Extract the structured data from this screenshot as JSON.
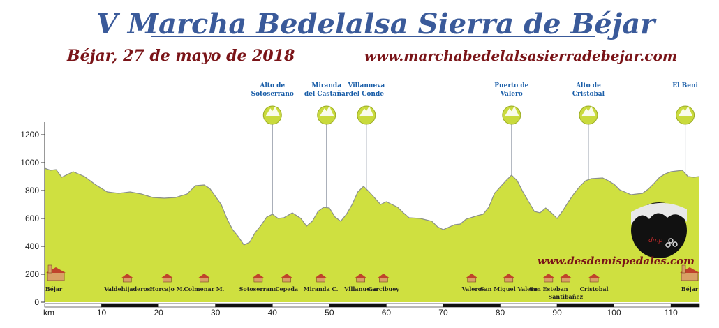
{
  "header": {
    "title": "V Marcha Bedelalsa Sierra de Béjar",
    "date_place": "Béjar, 27 de mayo de 2018",
    "website": "www.marchabedelalsasierradebejar.com",
    "watermark_url": "www.desdemispedales.com",
    "logo_text": "dmp"
  },
  "colors": {
    "title": "#3a5a9a",
    "subtitle": "#7a1418",
    "fill": "#cfe040",
    "outline": "#8a8f8a",
    "peak_label": "#1a5ea8",
    "peak_icon": "#c9da3d",
    "axis_bar": "#111111"
  },
  "chart_data": {
    "type": "area",
    "title": "",
    "xlabel": "km",
    "ylabel": "",
    "xlim": [
      0,
      115
    ],
    "ylim": [
      0,
      1250
    ],
    "x_ticks": [
      10,
      20,
      30,
      40,
      50,
      60,
      70,
      80,
      90,
      100,
      110
    ],
    "y_ticks": [
      0,
      200,
      400,
      600,
      800,
      1000,
      1200
    ],
    "grid": false,
    "profile": [
      {
        "x": 0,
        "y": 960
      },
      {
        "x": 1,
        "y": 945
      },
      {
        "x": 2,
        "y": 950
      },
      {
        "x": 3,
        "y": 895
      },
      {
        "x": 4,
        "y": 915
      },
      {
        "x": 5,
        "y": 935
      },
      {
        "x": 7,
        "y": 900
      },
      {
        "x": 9,
        "y": 840
      },
      {
        "x": 11,
        "y": 790
      },
      {
        "x": 13,
        "y": 780
      },
      {
        "x": 15,
        "y": 790
      },
      {
        "x": 17,
        "y": 775
      },
      {
        "x": 19,
        "y": 750
      },
      {
        "x": 21,
        "y": 745
      },
      {
        "x": 23,
        "y": 750
      },
      {
        "x": 25,
        "y": 775
      },
      {
        "x": 26.5,
        "y": 835
      },
      {
        "x": 28,
        "y": 840
      },
      {
        "x": 29,
        "y": 815
      },
      {
        "x": 31,
        "y": 700
      },
      {
        "x": 32,
        "y": 600
      },
      {
        "x": 33,
        "y": 520
      },
      {
        "x": 34,
        "y": 470
      },
      {
        "x": 35,
        "y": 410
      },
      {
        "x": 36,
        "y": 430
      },
      {
        "x": 37,
        "y": 500
      },
      {
        "x": 38,
        "y": 550
      },
      {
        "x": 39,
        "y": 610
      },
      {
        "x": 40,
        "y": 630
      },
      {
        "x": 41,
        "y": 600
      },
      {
        "x": 42,
        "y": 605
      },
      {
        "x": 43.5,
        "y": 640
      },
      {
        "x": 45,
        "y": 600
      },
      {
        "x": 46,
        "y": 545
      },
      {
        "x": 47,
        "y": 580
      },
      {
        "x": 48,
        "y": 650
      },
      {
        "x": 49,
        "y": 680
      },
      {
        "x": 50,
        "y": 675
      },
      {
        "x": 51,
        "y": 610
      },
      {
        "x": 52,
        "y": 580
      },
      {
        "x": 53,
        "y": 630
      },
      {
        "x": 54,
        "y": 700
      },
      {
        "x": 55,
        "y": 790
      },
      {
        "x": 56,
        "y": 830
      },
      {
        "x": 57,
        "y": 790
      },
      {
        "x": 58,
        "y": 745
      },
      {
        "x": 59,
        "y": 700
      },
      {
        "x": 60,
        "y": 720
      },
      {
        "x": 61,
        "y": 700
      },
      {
        "x": 62,
        "y": 680
      },
      {
        "x": 63,
        "y": 640
      },
      {
        "x": 64,
        "y": 605
      },
      {
        "x": 66,
        "y": 600
      },
      {
        "x": 68,
        "y": 580
      },
      {
        "x": 69,
        "y": 540
      },
      {
        "x": 70,
        "y": 520
      },
      {
        "x": 72,
        "y": 555
      },
      {
        "x": 73,
        "y": 560
      },
      {
        "x": 74,
        "y": 595
      },
      {
        "x": 76,
        "y": 620
      },
      {
        "x": 77,
        "y": 630
      },
      {
        "x": 78,
        "y": 680
      },
      {
        "x": 79,
        "y": 780
      },
      {
        "x": 81,
        "y": 870
      },
      {
        "x": 82,
        "y": 910
      },
      {
        "x": 83,
        "y": 870
      },
      {
        "x": 84,
        "y": 790
      },
      {
        "x": 85,
        "y": 720
      },
      {
        "x": 86,
        "y": 650
      },
      {
        "x": 87,
        "y": 640
      },
      {
        "x": 88,
        "y": 675
      },
      {
        "x": 89,
        "y": 640
      },
      {
        "x": 90,
        "y": 600
      },
      {
        "x": 91,
        "y": 655
      },
      {
        "x": 92,
        "y": 720
      },
      {
        "x": 93,
        "y": 780
      },
      {
        "x": 94,
        "y": 830
      },
      {
        "x": 95,
        "y": 870
      },
      {
        "x": 96,
        "y": 885
      },
      {
        "x": 98,
        "y": 890
      },
      {
        "x": 99,
        "y": 870
      },
      {
        "x": 100,
        "y": 845
      },
      {
        "x": 101,
        "y": 805
      },
      {
        "x": 103,
        "y": 770
      },
      {
        "x": 105,
        "y": 780
      },
      {
        "x": 106,
        "y": 810
      },
      {
        "x": 107,
        "y": 850
      },
      {
        "x": 108,
        "y": 895
      },
      {
        "x": 109,
        "y": 920
      },
      {
        "x": 110,
        "y": 935
      },
      {
        "x": 111,
        "y": 940
      },
      {
        "x": 112,
        "y": 945
      },
      {
        "x": 113,
        "y": 900
      },
      {
        "x": 114,
        "y": 895
      },
      {
        "x": 115,
        "y": 900
      }
    ],
    "peaks": [
      {
        "label1": "Alto de",
        "label2": "Sotoserrano",
        "x": 40
      },
      {
        "label1": "Miranda",
        "label2": "del Castañar",
        "x": 49.5
      },
      {
        "label1": "Villanueva",
        "label2": "del Conde",
        "x": 56.5
      },
      {
        "label1": "Puerto de",
        "label2": "Valero",
        "x": 82
      },
      {
        "label1": "Alto de",
        "label2": "Cristobal",
        "x": 95.5
      },
      {
        "label1": "El Beni",
        "label2": "",
        "x": 112.5
      }
    ],
    "towns": [
      {
        "name": "Béjar",
        "x": 1.5,
        "big": true
      },
      {
        "name": "Valdehijaderos",
        "x": 14.5,
        "big": false
      },
      {
        "name": "Horcajo M.",
        "x": 21.5,
        "big": false
      },
      {
        "name": "Colmenar M.",
        "x": 28,
        "big": false
      },
      {
        "name": "Sotoserrano",
        "x": 37.5,
        "big": false
      },
      {
        "name": "Cepeda",
        "x": 42.5,
        "big": false
      },
      {
        "name": "Miranda C.",
        "x": 48.5,
        "big": false
      },
      {
        "name": "Villanueva",
        "x": 55.5,
        "big": false
      },
      {
        "name": "Garcibuey",
        "x": 59.5,
        "big": false
      },
      {
        "name": "Valero",
        "x": 75,
        "big": false
      },
      {
        "name": "San Miguel Valero",
        "x": 81.5,
        "big": false
      },
      {
        "name": "San Esteban",
        "x": 88.5,
        "big": false
      },
      {
        "name": "Santibañez",
        "x": 91.5,
        "big": false
      },
      {
        "name": "Cristobal",
        "x": 96.5,
        "big": false
      },
      {
        "name": "Béjar",
        "x": 113.5,
        "big": true
      }
    ]
  }
}
